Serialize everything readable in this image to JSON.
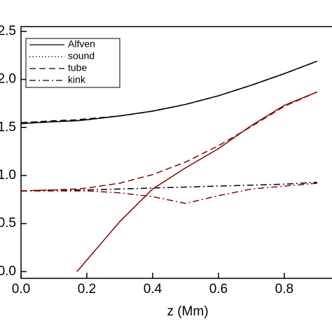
{
  "chart_data": {
    "type": "line",
    "x_label": "z (Mm)",
    "x": [
      0,
      0.1,
      0.17,
      0.2,
      0.3,
      0.4,
      0.5,
      0.6,
      0.7,
      0.8,
      0.9
    ],
    "xlim": [
      0,
      0.945
    ],
    "xticks": [
      {
        "value": 0,
        "label": "0.0"
      },
      0.2,
      0.4,
      0.6,
      0.8
    ],
    "ylim": [
      -0.07,
      2.55
    ],
    "yticks": [
      {
        "value": 0,
        "label": "0.0"
      },
      0.5,
      {
        "value": 1,
        "label": "1.0"
      },
      1.5,
      {
        "value": 2,
        "label": "2.0"
      },
      2.5
    ],
    "legend": "upper-left",
    "series": [
      {
        "name": "Alfven",
        "color": "#000000",
        "linestyle": "solid",
        "values": [
          1.54,
          1.56,
          1.57,
          1.58,
          1.62,
          1.67,
          1.74,
          1.83,
          1.94,
          2.06,
          2.19
        ]
      },
      {
        "name": "sound",
        "color": "#000000",
        "linestyle": "dotted",
        "values": [
          1.54,
          1.56,
          1.57,
          1.58,
          1.62,
          1.67,
          1.74,
          1.83,
          1.94,
          2.06,
          2.19
        ]
      },
      {
        "name": "tube",
        "color": "#000000",
        "linestyle": "dashed",
        "values": [
          1.55,
          1.57,
          1.58,
          1.59,
          1.62,
          1.67,
          1.74,
          1.83,
          1.94,
          2.06,
          2.19
        ]
      },
      {
        "name": "kink",
        "color": "#000000",
        "linestyle": "dashdot",
        "values": [
          0.84,
          0.85,
          0.85,
          0.85,
          0.86,
          0.87,
          0.88,
          0.89,
          0.9,
          0.91,
          0.93
        ]
      },
      {
        "color": "#8b0000",
        "linestyle": "solid",
        "values": [
          null,
          null,
          0,
          0.12,
          0.52,
          0.86,
          1.08,
          1.28,
          1.52,
          1.73,
          1.87
        ]
      },
      {
        "color": "#8b0000",
        "linestyle": "dashed",
        "values": [
          0.84,
          0.85,
          0.86,
          0.87,
          0.92,
          1.01,
          1.14,
          1.31,
          1.51,
          1.72,
          1.87
        ]
      },
      {
        "color": "#8b0000",
        "linestyle": "dashdot",
        "values": [
          0.84,
          0.84,
          0.84,
          0.84,
          0.82,
          0.78,
          0.71,
          0.79,
          0.86,
          0.89,
          0.92
        ]
      }
    ]
  }
}
